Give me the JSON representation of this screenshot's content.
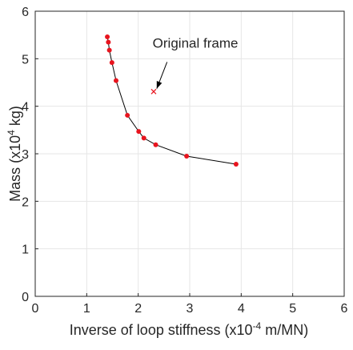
{
  "chart_data": {
    "type": "scatter",
    "title": "",
    "xlabel": {
      "main": "Inverse of loop stiffness (x10",
      "exp": "-4",
      "unit": " m/MN)"
    },
    "ylabel": {
      "main": "Mass (x10",
      "exp": "4",
      "unit": " kg)"
    },
    "xlim": [
      0,
      6
    ],
    "ylim": [
      0,
      6
    ],
    "xticks": [
      "0",
      "1",
      "2",
      "3",
      "4",
      "5",
      "6"
    ],
    "yticks": [
      "0",
      "1",
      "2",
      "3",
      "4",
      "5",
      "6"
    ],
    "grid": true,
    "series": [
      {
        "marker": "dot",
        "color": "#e8141e",
        "line_color": "#000000",
        "points": [
          [
            1.4,
            5.46
          ],
          [
            1.42,
            5.35
          ],
          [
            1.44,
            5.18
          ],
          [
            1.49,
            4.92
          ],
          [
            1.57,
            4.54
          ],
          [
            1.79,
            3.81
          ],
          [
            2.01,
            3.47
          ],
          [
            2.11,
            3.33
          ],
          [
            2.34,
            3.19
          ],
          [
            2.94,
            2.95
          ],
          [
            3.9,
            2.78
          ]
        ]
      }
    ],
    "annotations": [
      {
        "text": "Original frame",
        "marker": "x",
        "color": "#e8141e",
        "point": [
          2.3,
          4.31
        ],
        "label_anchor": [
          2.28,
          5.23
        ],
        "arrow_from": [
          2.56,
          4.93
        ],
        "arrow_to": [
          2.36,
          4.37
        ]
      }
    ]
  }
}
